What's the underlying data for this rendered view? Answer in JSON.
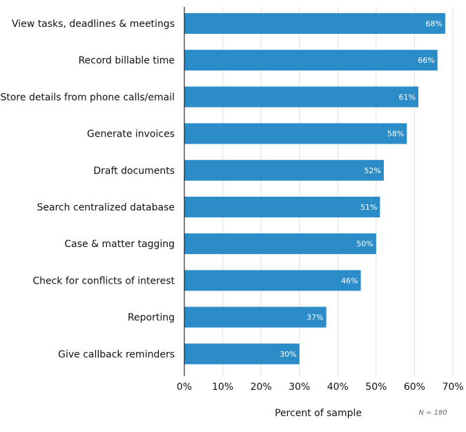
{
  "chart_data": {
    "type": "bar",
    "orientation": "horizontal",
    "categories": [
      "View tasks, deadlines & meetings",
      "Record billable time",
      "Store details from phone calls/email",
      "Generate invoices",
      "Draft documents",
      "Search centralized database",
      "Case & matter tagging",
      "Check for conflicts of interest",
      "Reporting",
      "Give callback reminders"
    ],
    "values": [
      68,
      66,
      61,
      58,
      52,
      51,
      50,
      46,
      37,
      30
    ],
    "data_labels": [
      "68%",
      "66%",
      "61%",
      "58%",
      "52%",
      "51%",
      "50%",
      "46%",
      "37%",
      "30%"
    ],
    "xlabel": "Percent of sample",
    "xlim": [
      0,
      70
    ],
    "ticks": [
      0,
      10,
      20,
      30,
      40,
      50,
      60,
      70
    ],
    "tick_labels": [
      "0%",
      "10%",
      "20%",
      "30%",
      "40%",
      "50%",
      "60%",
      "70%"
    ],
    "note": "N = 180",
    "grid": true,
    "bar_color": "#2b8cc8"
  }
}
